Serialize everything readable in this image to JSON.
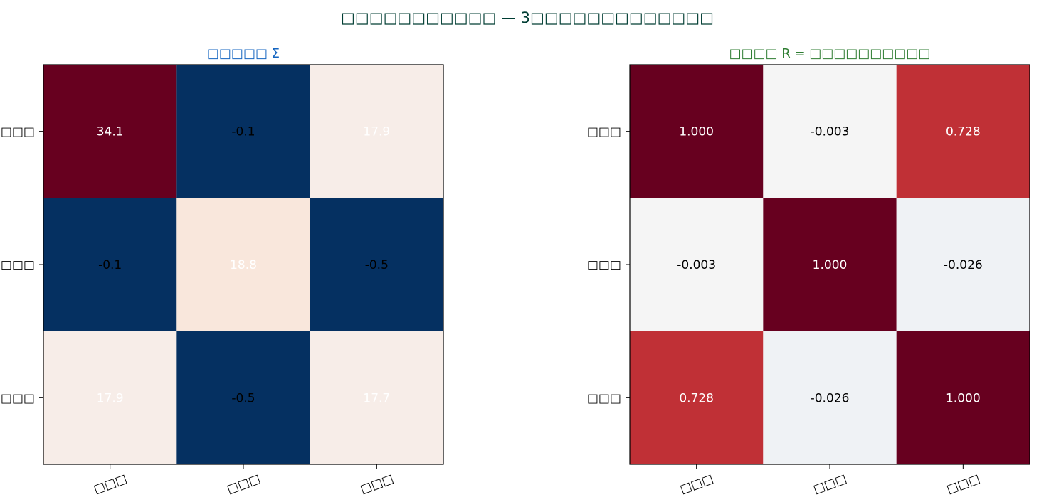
{
  "figure": {
    "suptitle": "□□□□□□□□□□□ — 3□□□□□□□□□□□□□",
    "suptitle_color": "#003d33"
  },
  "chart_data": [
    {
      "type": "heatmap",
      "title": "□□□□□ Σ",
      "title_color": "#1565c0",
      "xlabel": "",
      "ylabel": "",
      "x_tick_labels": [
        "□□□",
        "□□□",
        "□□□"
      ],
      "y_tick_labels": [
        "□□□",
        "□□□",
        "□□□"
      ],
      "values": [
        [
          34.1,
          -0.1,
          17.9
        ],
        [
          -0.1,
          18.8,
          -0.5
        ],
        [
          17.9,
          -0.5,
          17.7
        ]
      ],
      "cell_labels": [
        [
          "34.1",
          "-0.1",
          "17.9"
        ],
        [
          "-0.1",
          "18.8",
          "-0.5"
        ],
        [
          "17.9",
          "-0.5",
          "17.7"
        ]
      ],
      "cell_colors": [
        [
          "#67001f",
          "#053061",
          "#f7ede8"
        ],
        [
          "#053061",
          "#f9e7dc",
          "#053061"
        ],
        [
          "#f7ede8",
          "#053061",
          "#f7ede8"
        ]
      ],
      "label_colors": [
        [
          "#ffffff",
          "#000000",
          "#ffffff"
        ],
        [
          "#000000",
          "#ffffff",
          "#000000"
        ],
        [
          "#ffffff",
          "#000000",
          "#ffffff"
        ]
      ],
      "colormap": "RdBu_r"
    },
    {
      "type": "heatmap",
      "title": "□□□□ R = □□□□□□□□□□",
      "title_color": "#2e7d32",
      "xlabel": "",
      "ylabel": "",
      "x_tick_labels": [
        "□□□",
        "□□□",
        "□□□"
      ],
      "y_tick_labels": [
        "□□□",
        "□□□",
        "□□□"
      ],
      "values": [
        [
          1.0,
          -0.003,
          0.728
        ],
        [
          -0.003,
          1.0,
          -0.026
        ],
        [
          0.728,
          -0.026,
          1.0
        ]
      ],
      "cell_labels": [
        [
          "1.000",
          "-0.003",
          "0.728"
        ],
        [
          "-0.003",
          "1.000",
          "-0.026"
        ],
        [
          "0.728",
          "-0.026",
          "1.000"
        ]
      ],
      "cell_colors": [
        [
          "#67001f",
          "#f5f5f5",
          "#c03036"
        ],
        [
          "#f5f5f5",
          "#67001f",
          "#eff2f5"
        ],
        [
          "#c03036",
          "#eff2f5",
          "#67001f"
        ]
      ],
      "label_colors": [
        [
          "#ffffff",
          "#000000",
          "#ffffff"
        ],
        [
          "#000000",
          "#ffffff",
          "#000000"
        ],
        [
          "#ffffff",
          "#000000",
          "#ffffff"
        ]
      ],
      "colormap": "RdBu_r"
    }
  ]
}
